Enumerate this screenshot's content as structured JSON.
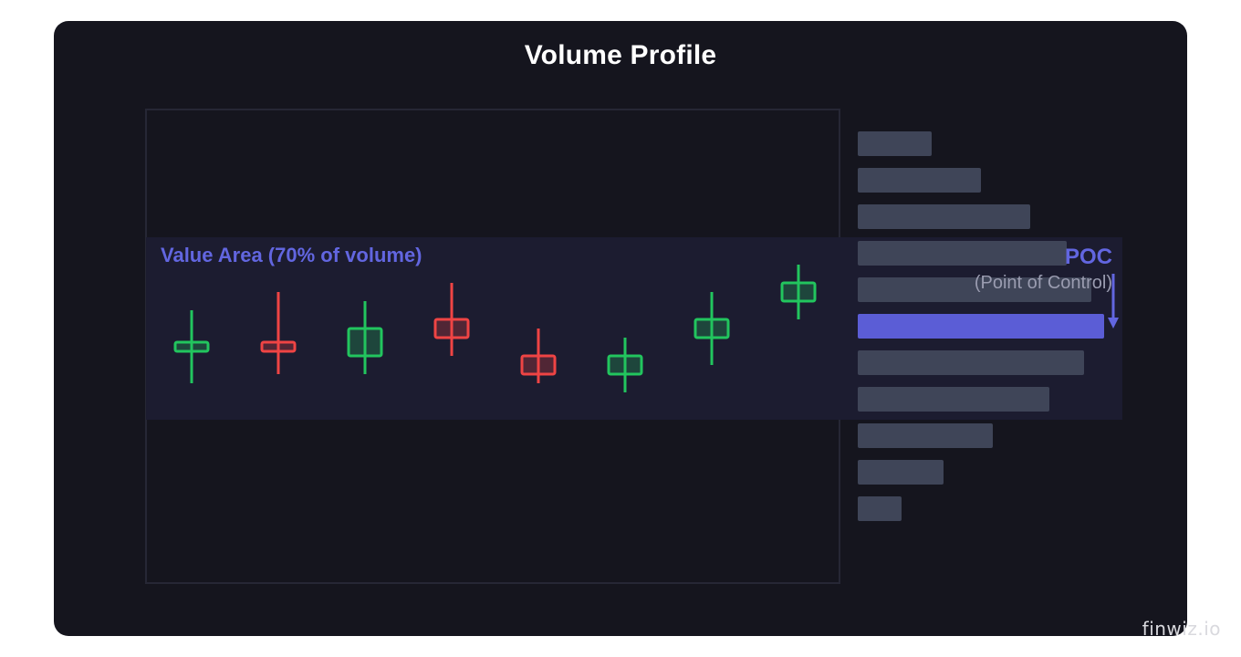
{
  "title": "Volume Profile",
  "value_area_label": "Value Area (70% of volume)",
  "poc_label": "POC",
  "poc_sublabel": "(Point of Control)",
  "watermark": "finwiz.io",
  "colors": {
    "background": "#15151e",
    "chart_border": "#262735",
    "value_area": "#1c1c30",
    "accent": "#6266e0",
    "bull": "#22c55e",
    "bear": "#ef4444",
    "volume_bar": "#3f4558",
    "poc_bar": "#5b5dd6",
    "title": "#ffffff",
    "sublabel": "#9a9cb0"
  },
  "chart_data": {
    "type": "candlestick-with-volume-profile",
    "candles": [
      {
        "direction": "up",
        "open": 47.5,
        "close": 48.5,
        "high": 52,
        "low": 44
      },
      {
        "direction": "down",
        "open": 48.5,
        "close": 47.5,
        "high": 54,
        "low": 45
      },
      {
        "direction": "up",
        "open": 47,
        "close": 50,
        "high": 53,
        "low": 45
      },
      {
        "direction": "down",
        "open": 51,
        "close": 49,
        "high": 55,
        "low": 47
      },
      {
        "direction": "down",
        "open": 47,
        "close": 45,
        "high": 50,
        "low": 44
      },
      {
        "direction": "up",
        "open": 45,
        "close": 47,
        "high": 49,
        "low": 43
      },
      {
        "direction": "up",
        "open": 49,
        "close": 51,
        "high": 54,
        "low": 46
      },
      {
        "direction": "up",
        "open": 53,
        "close": 55,
        "high": 57,
        "low": 51
      }
    ],
    "volume_profile": [
      {
        "price": 73,
        "volume": 81
      },
      {
        "price": 69,
        "volume": 135
      },
      {
        "price": 65,
        "volume": 189
      },
      {
        "price": 61,
        "volume": 229
      },
      {
        "price": 57,
        "volume": 256
      },
      {
        "price": 53,
        "volume": 270,
        "poc": true
      },
      {
        "price": 49,
        "volume": 248
      },
      {
        "price": 45,
        "volume": 210
      },
      {
        "price": 41,
        "volume": 148
      },
      {
        "price": 37,
        "volume": 94
      },
      {
        "price": 33,
        "volume": 48
      }
    ],
    "value_area": {
      "high": 62,
      "low": 42
    },
    "price_range": [
      22,
      74
    ]
  }
}
